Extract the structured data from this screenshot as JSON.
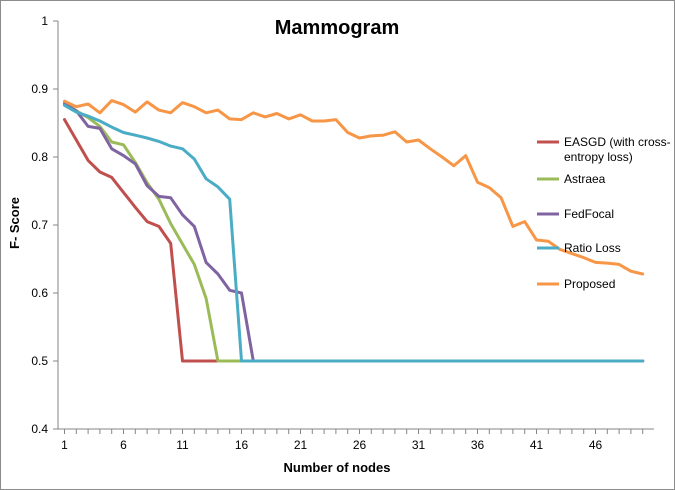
{
  "chart_data": {
    "type": "line",
    "title": "Mammogram",
    "xlabel": "Number of nodes",
    "ylabel": "F- Score",
    "xlim": [
      1,
      50
    ],
    "ylim": [
      0.4,
      1.0
    ],
    "x_ticks": [
      "1",
      "6",
      "11",
      "16",
      "21",
      "26",
      "31",
      "36",
      "41",
      "46"
    ],
    "y_ticks": [
      "0.4",
      "0.5",
      "0.6",
      "0.7",
      "0.8",
      "0.9",
      "1"
    ],
    "grid": false,
    "legend_position": "right",
    "series": [
      {
        "name": "EASGD (with cross-entropy loss)",
        "legend_lines": [
          "EASGD (with cross-",
          "entropy loss)"
        ],
        "color": "#c0504d",
        "values": [
          0.855,
          0.825,
          0.795,
          0.778,
          0.77,
          0.748,
          0.726,
          0.705,
          0.698,
          0.673,
          0.5,
          0.5,
          0.5,
          0.5,
          0.5,
          0.5,
          0.5,
          0.5,
          0.5,
          0.5,
          0.5,
          0.5,
          0.5,
          0.5,
          0.5,
          0.5,
          0.5,
          0.5,
          0.5,
          0.5,
          0.5,
          0.5,
          0.5,
          0.5,
          0.5,
          0.5,
          0.5,
          0.5,
          0.5,
          0.5,
          0.5,
          0.5,
          0.5,
          0.5,
          0.5,
          0.5,
          0.5,
          0.5,
          0.5,
          0.5
        ]
      },
      {
        "name": "Astraea",
        "legend_lines": [
          "Astraea"
        ],
        "color": "#9bbb59",
        "values": [
          0.88,
          0.868,
          0.858,
          0.845,
          0.822,
          0.818,
          0.792,
          0.762,
          0.738,
          0.702,
          0.672,
          0.642,
          0.592,
          0.5,
          0.5,
          0.5,
          0.5,
          0.5,
          0.5,
          0.5,
          0.5,
          0.5,
          0.5,
          0.5,
          0.5,
          0.5,
          0.5,
          0.5,
          0.5,
          0.5,
          0.5,
          0.5,
          0.5,
          0.5,
          0.5,
          0.5,
          0.5,
          0.5,
          0.5,
          0.5,
          0.5,
          0.5,
          0.5,
          0.5,
          0.5,
          0.5,
          0.5,
          0.5,
          0.5,
          0.5
        ]
      },
      {
        "name": "FedFocal",
        "legend_lines": [
          "FedFocal"
        ],
        "color": "#8064a2",
        "values": [
          0.878,
          0.868,
          0.845,
          0.842,
          0.812,
          0.802,
          0.79,
          0.758,
          0.742,
          0.74,
          0.715,
          0.698,
          0.645,
          0.628,
          0.604,
          0.6,
          0.5,
          0.5,
          0.5,
          0.5,
          0.5,
          0.5,
          0.5,
          0.5,
          0.5,
          0.5,
          0.5,
          0.5,
          0.5,
          0.5,
          0.5,
          0.5,
          0.5,
          0.5,
          0.5,
          0.5,
          0.5,
          0.5,
          0.5,
          0.5,
          0.5,
          0.5,
          0.5,
          0.5,
          0.5,
          0.5,
          0.5,
          0.5,
          0.5,
          0.5
        ]
      },
      {
        "name": "Ratio Loss",
        "legend_lines": [
          "Ratio Loss"
        ],
        "color": "#4bacc6",
        "values": [
          0.876,
          0.866,
          0.86,
          0.853,
          0.844,
          0.836,
          0.832,
          0.828,
          0.823,
          0.816,
          0.812,
          0.797,
          0.768,
          0.756,
          0.738,
          0.5,
          0.5,
          0.5,
          0.5,
          0.5,
          0.5,
          0.5,
          0.5,
          0.5,
          0.5,
          0.5,
          0.5,
          0.5,
          0.5,
          0.5,
          0.5,
          0.5,
          0.5,
          0.5,
          0.5,
          0.5,
          0.5,
          0.5,
          0.5,
          0.5,
          0.5,
          0.5,
          0.5,
          0.5,
          0.5,
          0.5,
          0.5,
          0.5,
          0.5,
          0.5
        ]
      },
      {
        "name": "Proposed",
        "legend_lines": [
          "Proposed"
        ],
        "color": "#f79646",
        "values": [
          0.882,
          0.874,
          0.878,
          0.865,
          0.883,
          0.877,
          0.866,
          0.881,
          0.869,
          0.865,
          0.88,
          0.874,
          0.865,
          0.869,
          0.856,
          0.855,
          0.865,
          0.859,
          0.864,
          0.856,
          0.862,
          0.853,
          0.853,
          0.855,
          0.836,
          0.828,
          0.831,
          0.832,
          0.837,
          0.822,
          0.825,
          0.812,
          0.8,
          0.787,
          0.802,
          0.763,
          0.755,
          0.74,
          0.698,
          0.705,
          0.678,
          0.676,
          0.664,
          0.658,
          0.652,
          0.645,
          0.644,
          0.642,
          0.632,
          0.628
        ]
      }
    ]
  }
}
